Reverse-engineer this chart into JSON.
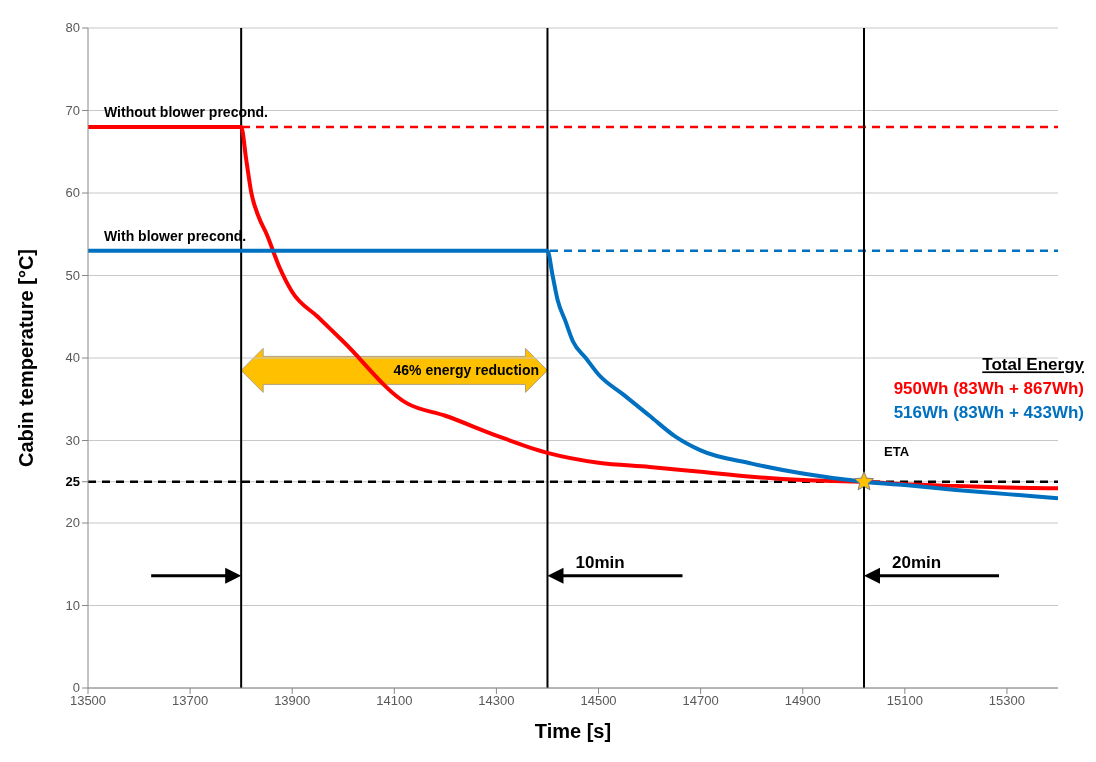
{
  "chart_data": {
    "type": "line",
    "xlabel": "Time [s]",
    "ylabel": "Cabin temperature [°C]",
    "xlim": [
      13500,
      15400
    ],
    "xticks": [
      13500,
      13700,
      13900,
      14100,
      14300,
      14500,
      14700,
      14900,
      15100,
      15300
    ],
    "ylim": [
      0,
      80
    ],
    "yticks": [
      0,
      10,
      20,
      25,
      30,
      40,
      50,
      60,
      70,
      80
    ],
    "grid": "y",
    "marker": "none",
    "line_style": "solid",
    "series": [
      {
        "color": "#ff0000",
        "x": [
          13500,
          13800,
          13810,
          13820,
          13835,
          13850,
          13875,
          13900,
          13950,
          14000,
          14125,
          14200,
          14300,
          14400,
          14500,
          14600,
          14700,
          14800,
          14900,
          15020,
          15100,
          15200,
          15300,
          15400
        ],
        "values": [
          68,
          68,
          64,
          60,
          57,
          55,
          51,
          48,
          45,
          42,
          34.5,
          33,
          30.6,
          28.5,
          27.3,
          26.8,
          26.2,
          25.6,
          25.2,
          25,
          24.7,
          24.5,
          24.3,
          24.2
        ]
      },
      {
        "color": "#0070c0",
        "x": [
          13500,
          14400,
          14410,
          14420,
          14435,
          14450,
          14475,
          14500,
          14550,
          14600,
          14650,
          14700,
          14800,
          14900,
          15020,
          15100,
          15200,
          15300,
          15400
        ],
        "values": [
          53,
          53,
          50,
          47,
          44.5,
          42,
          40,
          38,
          35.5,
          33,
          30.5,
          28.8,
          27.2,
          26,
          25,
          24.6,
          24,
          23.5,
          23
        ]
      }
    ],
    "ref_lines": [
      {
        "axis": "y",
        "value": 68,
        "label": "Without blower precond.",
        "color": "#ff0000",
        "line_style": "dashed"
      },
      {
        "axis": "y",
        "value": 53,
        "label": "With blower precond.",
        "color": "#0070c0",
        "line_style": "dashed"
      },
      {
        "axis": "y",
        "value": 25,
        "label": null,
        "color": "#000000",
        "line_style": "dashed"
      },
      {
        "axis": "x",
        "value": 13800,
        "label": null,
        "color": "#000000",
        "line_style": "solid"
      },
      {
        "axis": "x",
        "value": 14400,
        "label": "10min",
        "color": "#000000",
        "line_style": "solid"
      },
      {
        "axis": "x",
        "value": 15020,
        "label": "20min",
        "color": "#000000",
        "line_style": "solid"
      }
    ],
    "annotations": [
      "46% energy reduction",
      "Total Energy",
      "950Wh (83Wh + 867Wh)",
      "516Wh (83Wh + 433Wh)",
      {
        "text": "ETA",
        "x": 15020,
        "y": 25
      }
    ]
  }
}
